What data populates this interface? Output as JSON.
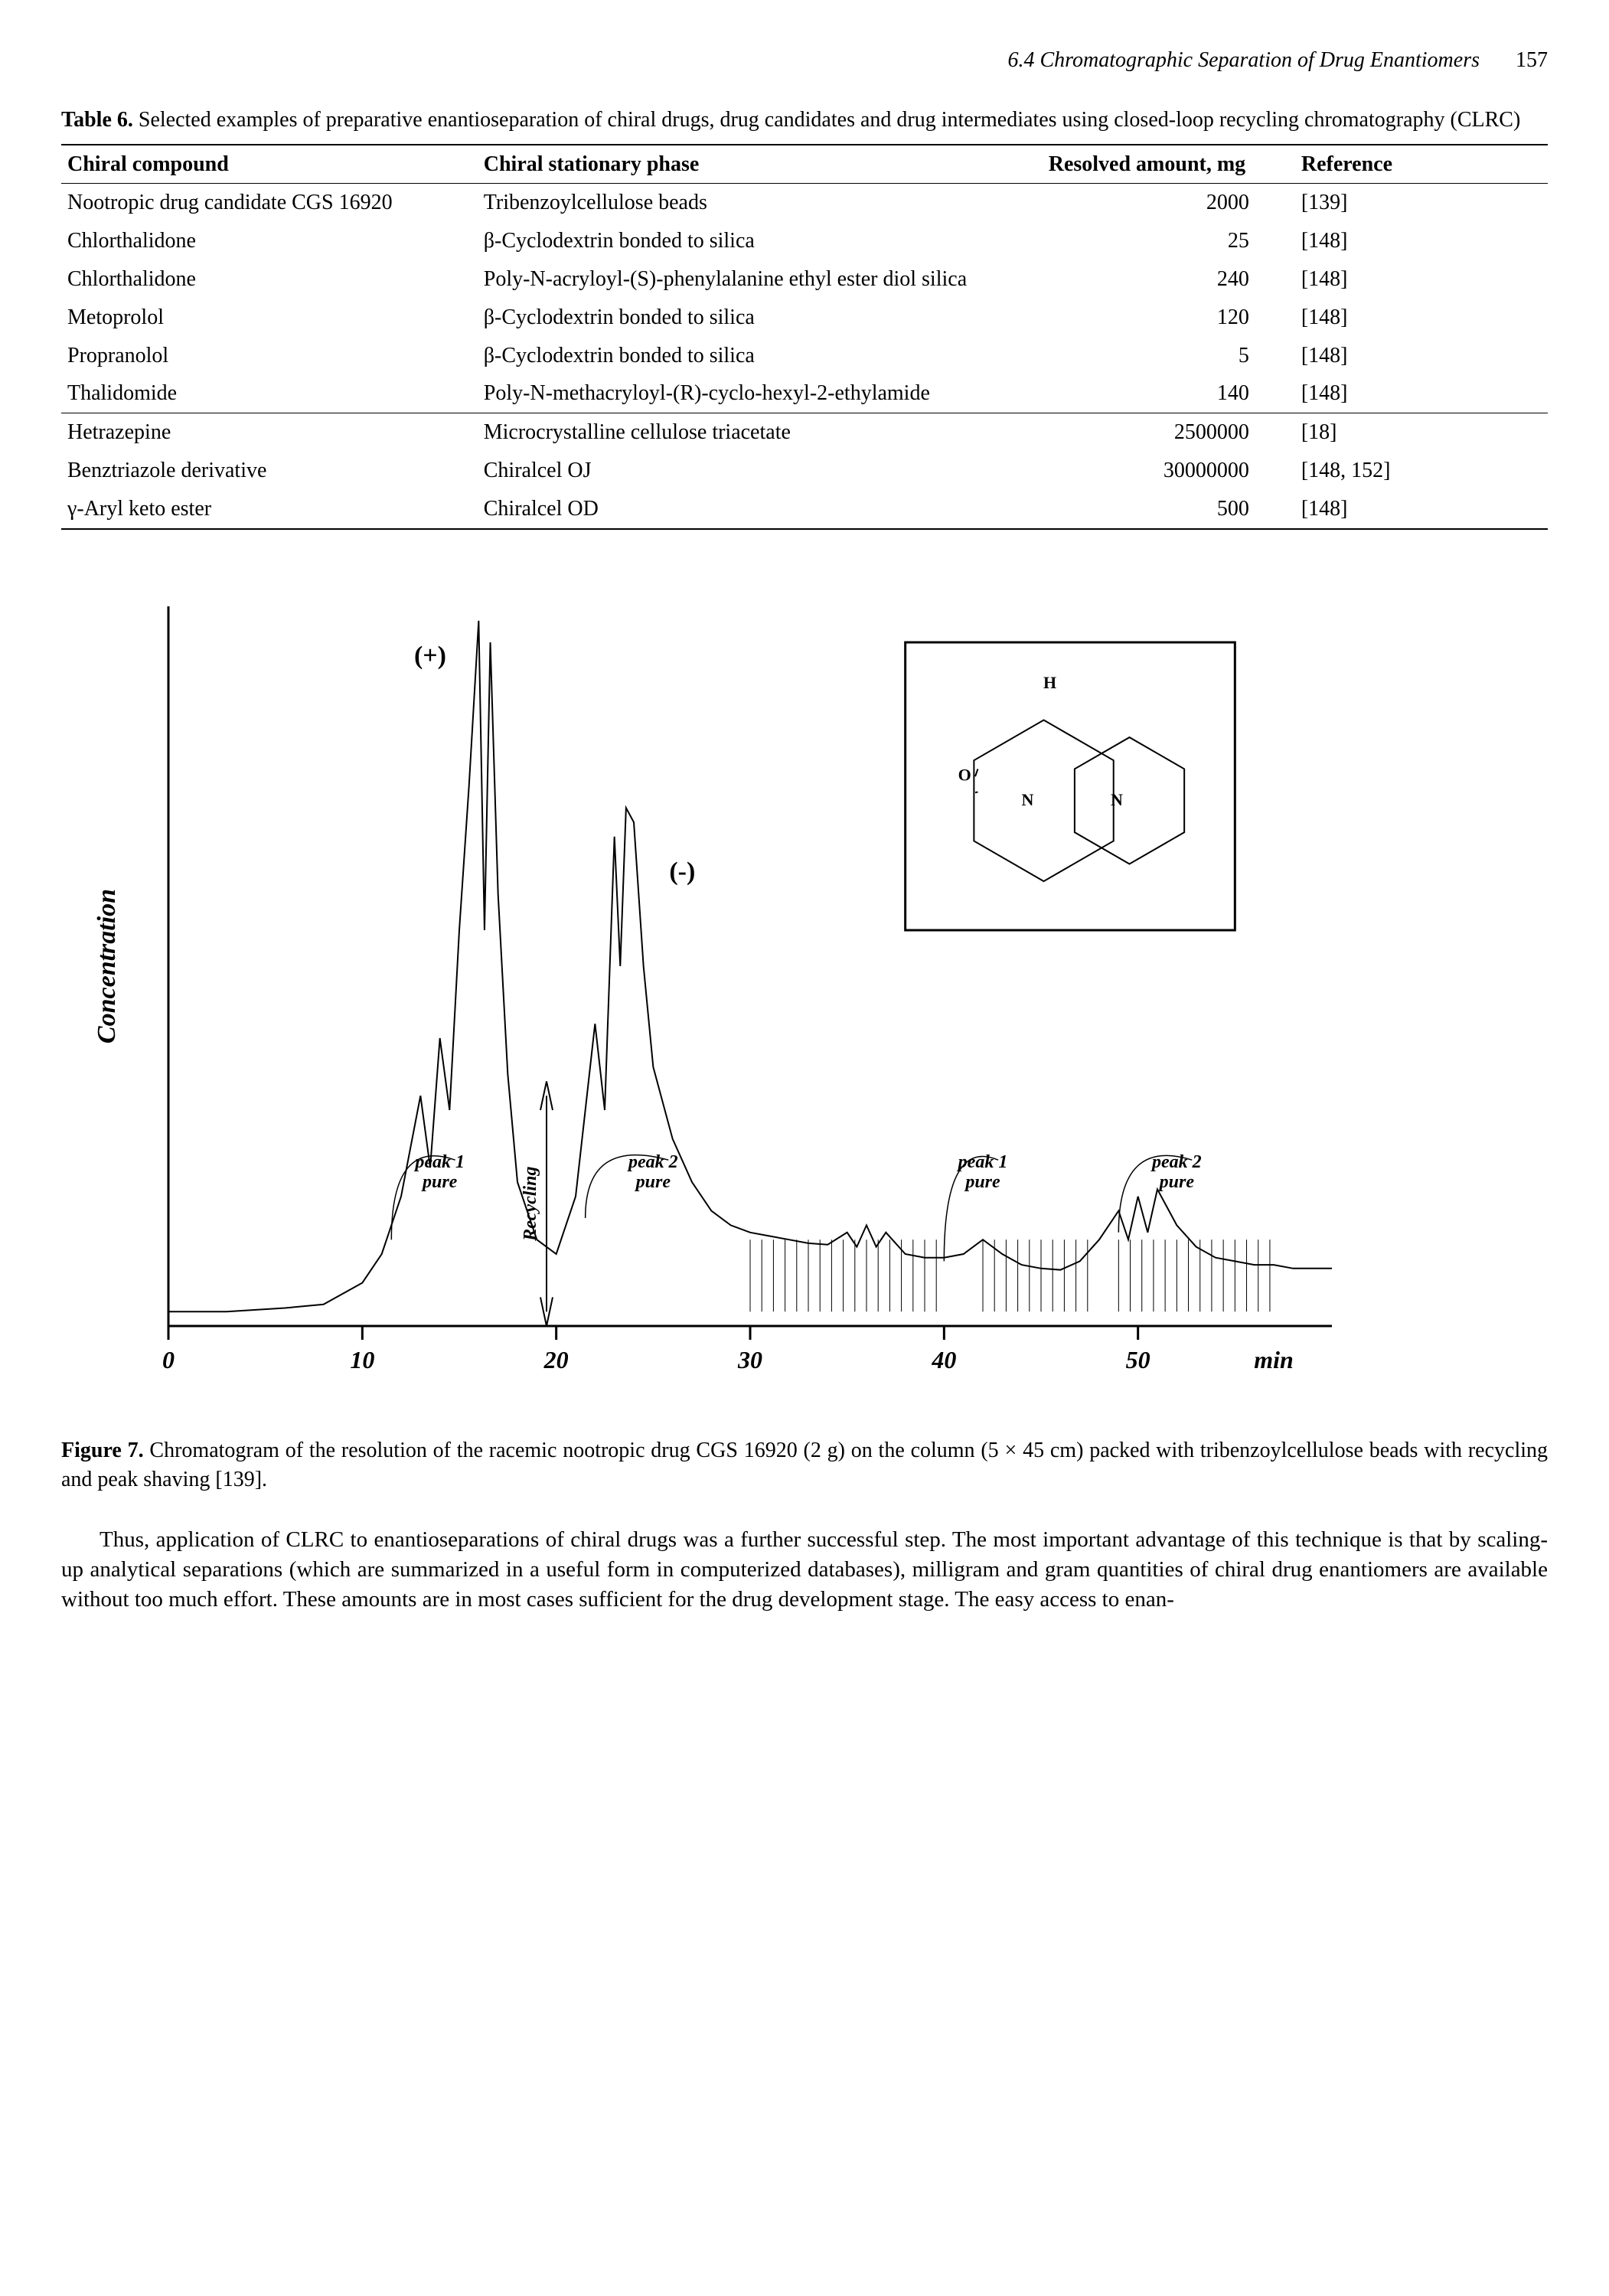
{
  "header": {
    "running_title": "6.4 Chromatographic Separation of Drug Enantiomers",
    "page_number": "157"
  },
  "table": {
    "label": "Table 6.",
    "caption": "Selected examples of preparative enantioseparation of chiral drugs, drug candidates and drug intermediates using closed-loop recycling chromatography (CLRC)",
    "columns": [
      "Chiral compound",
      "Chiral stationary phase",
      "Resolved amount, mg",
      "Reference"
    ],
    "groups": [
      {
        "rows": [
          {
            "compound": "Nootropic drug candidate CGS 16920",
            "phase": "Tribenzoylcellulose beads",
            "amount": "2000",
            "ref": "[139]"
          },
          {
            "compound": "Chlorthalidone",
            "phase": "β-Cyclodextrin bonded to silica",
            "amount": "25",
            "ref": "[148]"
          },
          {
            "compound": "Chlorthalidone",
            "phase": "Poly-N-acryloyl-(S)-phenylalanine ethyl ester diol silica",
            "amount": "240",
            "ref": "[148]"
          },
          {
            "compound": "Metoprolol",
            "phase": "β-Cyclodextrin bonded to silica",
            "amount": "120",
            "ref": "[148]"
          },
          {
            "compound": "Propranolol",
            "phase": "β-Cyclodextrin bonded to silica",
            "amount": "5",
            "ref": "[148]"
          },
          {
            "compound": "Thalidomide",
            "phase": "Poly-N-methacryloyl-(R)-cyclo-hexyl-2-ethylamide",
            "amount": "140",
            "ref": "[148]"
          }
        ]
      },
      {
        "rows": [
          {
            "compound": "Hetrazepine",
            "phase": "Microcrystalline cellulose triacetate",
            "amount": "2500000",
            "ref": "[18]"
          },
          {
            "compound": "Benztriazole derivative",
            "phase": "Chiralcel OJ",
            "amount": "30000000",
            "ref": "[148, 152]"
          },
          {
            "compound": "γ-Aryl keto ester",
            "phase": "Chiralcel OD",
            "amount": "500",
            "ref": "[148]"
          }
        ]
      }
    ]
  },
  "figure": {
    "label": "Figure 7.",
    "caption": "Chromatogram of the resolution of the racemic nootropic drug CGS 16920 (2 g) on the column (5 × 45 cm) packed with tribenzoylcellulose beads with recycling and peak shaving [139].",
    "chart": {
      "type": "line",
      "x_axis": {
        "min": 0,
        "max": 60,
        "ticks": [
          0,
          10,
          20,
          30,
          40,
          50
        ],
        "unit_label": "min"
      },
      "y_axis": {
        "label": "Concentration"
      },
      "line_color": "#000000",
      "line_width": 2,
      "background_color": "#ffffff",
      "plus_label": "(+)",
      "minus_label": "(-)",
      "peak_labels": [
        {
          "text1": "peak 1",
          "text2": "pure",
          "x": 14
        },
        {
          "text1": "peak 2",
          "text2": "pure",
          "x": 25
        },
        {
          "text1": "peak 1",
          "text2": "pure",
          "x": 42
        },
        {
          "text1": "peak 2",
          "text2": "pure",
          "x": 52
        }
      ],
      "recycling_label": "Recycling",
      "inset_box": {
        "border_color": "#000000",
        "border_width": 3
      }
    }
  },
  "body": {
    "paragraph": "Thus, application of CLRC to enantioseparations of chiral drugs was a further successful step. The most important advantage of this technique is that by scaling-up analytical separations (which are summarized in a useful form in computerized databases), milligram and gram quantities of chiral drug enantiomers are available without too much effort. These amounts are in most cases sufficient for the drug development stage. The easy access to enan-"
  }
}
